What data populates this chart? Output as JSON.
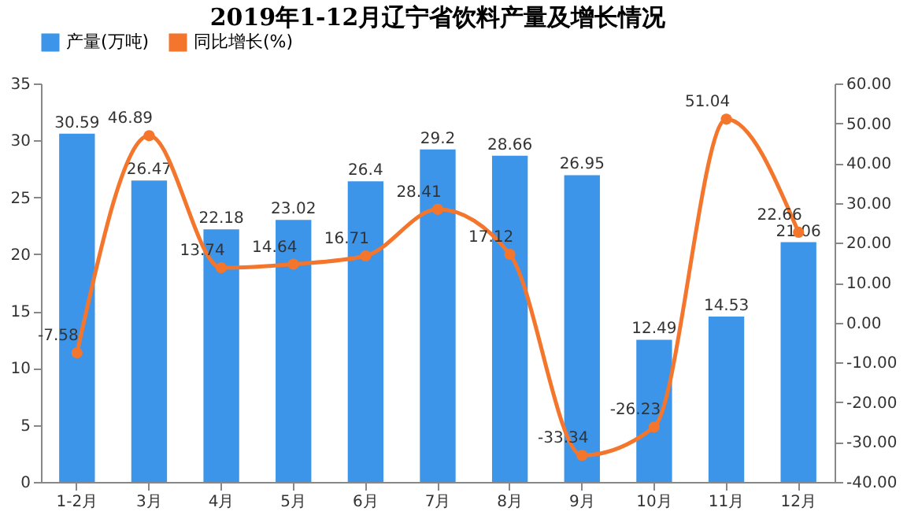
{
  "chart_data": {
    "type": "bar",
    "title": "2019年1-12月辽宁省饮料产量及增长情况",
    "categories": [
      "1-2月",
      "3月",
      "4月",
      "5月",
      "6月",
      "7月",
      "8月",
      "9月",
      "10月",
      "11月",
      "12月"
    ],
    "series": [
      {
        "name": "产量(万吨)",
        "color": "#3d95ea",
        "values": [
          30.59,
          26.47,
          22.18,
          23.02,
          26.4,
          29.2,
          28.66,
          26.95,
          12.49,
          14.53,
          21.06
        ]
      },
      {
        "name": "同比增长(%)",
        "type": "line",
        "axis": "y2",
        "color": "#f4762c",
        "values": [
          -7.58,
          46.89,
          13.74,
          14.64,
          16.71,
          28.41,
          17.12,
          -33.34,
          -26.23,
          51.04,
          22.66
        ]
      }
    ],
    "ylim": [
      0,
      35
    ],
    "yticks": [
      0,
      5,
      10,
      15,
      20,
      25,
      30,
      35
    ],
    "y2lim": [
      -40,
      60
    ],
    "y2ticks": [
      {
        "value": -40,
        "label": "-40.00"
      },
      {
        "value": -30,
        "label": "-30.00"
      },
      {
        "value": -20,
        "label": "-20.00"
      },
      {
        "value": -10,
        "label": "-10.00"
      },
      {
        "value": 0,
        "label": "0.00"
      },
      {
        "value": 10,
        "label": "10.00"
      },
      {
        "value": 20,
        "label": "20.00"
      },
      {
        "value": 30,
        "label": "30.00"
      },
      {
        "value": 40,
        "label": "40.00"
      },
      {
        "value": 50,
        "label": "50.00"
      },
      {
        "value": 60,
        "label": "60.00"
      }
    ],
    "data_labels": true,
    "legend": "top",
    "marker": "circle",
    "line_style": "solid"
  }
}
